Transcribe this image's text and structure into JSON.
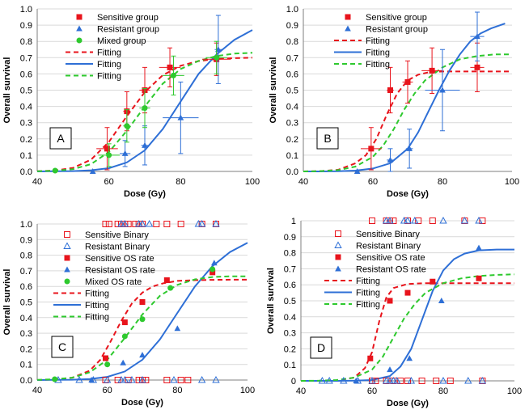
{
  "colors": {
    "sensitive": "#e8141c",
    "resistant": "#2e6fd6",
    "mixed": "#2ec92e"
  },
  "chart_data": [
    {
      "id": "A",
      "type": "scatter",
      "panel_label": "A",
      "xlabel": "Dose (Gy)",
      "ylabel": "Overall survival",
      "xlim": [
        40,
        100
      ],
      "ylim": [
        0,
        1.0
      ],
      "x_ticks": [
        "40",
        "60",
        "80",
        "100"
      ],
      "y_ticks": [
        "0.0",
        "0.1",
        "0.2",
        "0.3",
        "0.4",
        "0.5",
        "0.6",
        "0.7",
        "0.8",
        "0.9",
        "1.0"
      ],
      "series": [
        {
          "name": "Sensitive group",
          "kind": "points",
          "marker": "square",
          "color": "sensitive",
          "x": [
            59.5,
            65,
            70,
            77,
            90
          ],
          "y": [
            0.14,
            0.37,
            0.5,
            0.64,
            0.69
          ],
          "xerr": [
            3,
            1,
            1.5,
            3,
            4
          ],
          "yerr": [
            0.13,
            0.12,
            0.14,
            0.12,
            0.1
          ]
        },
        {
          "name": "Resistant group",
          "kind": "points",
          "marker": "triangle",
          "color": "resistant",
          "x": [
            55.5,
            64.5,
            70,
            80,
            90.5
          ],
          "y": [
            0.0,
            0.11,
            0.16,
            0.33,
            0.75
          ],
          "xerr": [
            0,
            1.5,
            1,
            5,
            1
          ],
          "yerr": [
            0,
            0.08,
            0.12,
            0.22,
            0.21
          ]
        },
        {
          "name": "Mixed group",
          "kind": "points",
          "marker": "circle",
          "color": "mixed",
          "x": [
            45,
            60,
            65,
            70,
            78,
            90
          ],
          "y": [
            0.005,
            0.1,
            0.28,
            0.39,
            0.59,
            0.7
          ],
          "xerr": [
            0,
            3,
            1,
            1.5,
            3,
            3
          ],
          "yerr": [
            0,
            0.07,
            0.1,
            0.12,
            0.12,
            0.1
          ]
        },
        {
          "name": "Fitting",
          "kind": "curve",
          "style": "dash",
          "color": "sensitive",
          "x": [
            40,
            45,
            50,
            55,
            60,
            65,
            70,
            75,
            80,
            85,
            90,
            95,
            100
          ],
          "y": [
            0.001,
            0.006,
            0.022,
            0.072,
            0.182,
            0.34,
            0.488,
            0.592,
            0.65,
            0.679,
            0.692,
            0.697,
            0.7
          ]
        },
        {
          "name": "Fitting",
          "kind": "curve",
          "style": "solid",
          "color": "resistant",
          "x": [
            40,
            45,
            50,
            55,
            60,
            65,
            70,
            75,
            80,
            85,
            90,
            95,
            100
          ],
          "y": [
            0.0,
            0.001,
            0.002,
            0.007,
            0.02,
            0.055,
            0.13,
            0.26,
            0.43,
            0.6,
            0.72,
            0.81,
            0.87
          ]
        },
        {
          "name": "Fitting",
          "kind": "curve",
          "style": "dash",
          "color": "mixed",
          "x": [
            40,
            45,
            50,
            55,
            60,
            65,
            70,
            75,
            80,
            85,
            90,
            95,
            100
          ],
          "y": [
            0.001,
            0.004,
            0.014,
            0.045,
            0.12,
            0.25,
            0.4,
            0.54,
            0.63,
            0.68,
            0.71,
            0.725,
            0.73
          ]
        }
      ]
    },
    {
      "id": "B",
      "type": "scatter",
      "panel_label": "B",
      "xlabel": "Dose (Gy)",
      "ylabel": "Overall survival",
      "xlim": [
        40,
        100
      ],
      "ylim": [
        0,
        1.0
      ],
      "x_ticks": [
        "40",
        "60",
        "80",
        "100"
      ],
      "y_ticks": [
        "0.0",
        "0.1",
        "0.2",
        "0.3",
        "0.4",
        "0.5",
        "0.6",
        "0.7",
        "0.8",
        "0.9",
        "1.0"
      ],
      "series": [
        {
          "name": "Sensitive group",
          "kind": "points",
          "marker": "square",
          "color": "sensitive",
          "x": [
            59.5,
            65,
            70,
            77,
            90
          ],
          "y": [
            0.14,
            0.5,
            0.55,
            0.62,
            0.64
          ],
          "xerr": [
            3,
            1,
            1.5,
            3,
            2
          ],
          "yerr": [
            0.13,
            0.14,
            0.13,
            0.14,
            0.15
          ]
        },
        {
          "name": "Resistant group",
          "kind": "points",
          "marker": "triangle",
          "color": "resistant",
          "x": [
            55.5,
            65,
            70.5,
            80,
            90
          ],
          "y": [
            0.0,
            0.07,
            0.14,
            0.5,
            0.83
          ],
          "xerr": [
            0,
            1,
            1,
            5,
            2
          ],
          "yerr": [
            0,
            0.07,
            0.12,
            0.25,
            0.15
          ]
        },
        {
          "name": "Fitting",
          "kind": "curve",
          "style": "dash",
          "color": "sensitive",
          "x": [
            40,
            45,
            50,
            55,
            58,
            61,
            64,
            67,
            70,
            73,
            76,
            80,
            85,
            90,
            95,
            100
          ],
          "y": [
            0.0,
            0.002,
            0.01,
            0.05,
            0.1,
            0.2,
            0.35,
            0.48,
            0.56,
            0.595,
            0.61,
            0.615,
            0.615,
            0.615,
            0.615,
            0.615
          ]
        },
        {
          "name": "Fitting",
          "kind": "curve",
          "style": "solid",
          "color": "resistant",
          "x": [
            40,
            45,
            50,
            55,
            60,
            65,
            70,
            73,
            76,
            79,
            82,
            85,
            88,
            91,
            94,
            98
          ],
          "y": [
            0.0,
            0.0,
            0.001,
            0.005,
            0.018,
            0.05,
            0.14,
            0.24,
            0.37,
            0.5,
            0.62,
            0.72,
            0.8,
            0.85,
            0.88,
            0.91
          ]
        },
        {
          "name": "Fitting",
          "kind": "curve",
          "style": "dash",
          "color": "mixed",
          "x": [
            40,
            45,
            50,
            55,
            60,
            63,
            66,
            69,
            72,
            75,
            80,
            85,
            90,
            95,
            100
          ],
          "y": [
            0.0,
            0.002,
            0.008,
            0.03,
            0.09,
            0.16,
            0.26,
            0.38,
            0.48,
            0.56,
            0.64,
            0.69,
            0.71,
            0.72,
            0.72
          ]
        }
      ]
    },
    {
      "id": "C",
      "type": "scatter",
      "panel_label": "C",
      "xlabel": "Dose (Gy)",
      "ylabel": "Overall survival",
      "xlim": [
        40,
        100
      ],
      "ylim": [
        0,
        1.0
      ],
      "x_ticks": [
        "40",
        "60",
        "80",
        "100"
      ],
      "y_ticks": [
        "0.0",
        "0.1",
        "0.2",
        "0.3",
        "0.4",
        "0.5",
        "0.6",
        "0.7",
        "0.8",
        "0.9",
        "1.0"
      ],
      "series": [
        {
          "name": "Sensitive Binary",
          "kind": "points",
          "marker": "open-square",
          "color": "sensitive",
          "x": [
            59.5,
            60.5,
            63,
            64,
            65,
            66,
            68,
            69,
            70,
            74,
            77,
            81,
            87,
            91,
            59.5,
            63,
            66,
            69,
            70,
            71,
            77,
            81,
            83
          ],
          "y": [
            1,
            1,
            1,
            1,
            1,
            1,
            1,
            1,
            1,
            1,
            1,
            1,
            1,
            1,
            0,
            0,
            0,
            0,
            0,
            0,
            0,
            0,
            0
          ]
        },
        {
          "name": "Resistant Binary",
          "kind": "points",
          "marker": "open-triangle",
          "color": "resistant",
          "x": [
            64,
            65,
            69,
            70,
            72,
            86,
            87,
            91,
            46,
            52,
            56,
            60,
            64,
            65,
            67,
            70,
            79,
            87,
            91
          ],
          "y": [
            1,
            1,
            1,
            1,
            1,
            1,
            1,
            1,
            0,
            0,
            0,
            0,
            0,
            0,
            0,
            0,
            0,
            0,
            0
          ]
        },
        {
          "name": "Sensitive OS rate",
          "kind": "points",
          "marker": "square",
          "color": "sensitive",
          "x": [
            59.5,
            65,
            70,
            77,
            90
          ],
          "y": [
            0.14,
            0.37,
            0.5,
            0.64,
            0.69
          ]
        },
        {
          "name": "Resistant OS rate",
          "kind": "points",
          "marker": "triangle",
          "color": "resistant",
          "x": [
            55.5,
            64.5,
            70,
            80,
            90.5
          ],
          "y": [
            0.0,
            0.11,
            0.16,
            0.33,
            0.75
          ]
        },
        {
          "name": "Mixed OS rate",
          "kind": "points",
          "marker": "circle",
          "color": "mixed",
          "x": [
            45,
            60,
            65,
            70,
            78,
            90
          ],
          "y": [
            0.005,
            0.1,
            0.28,
            0.39,
            0.59,
            0.71
          ]
        },
        {
          "name": "Fitting",
          "kind": "curve",
          "style": "dash",
          "color": "sensitive",
          "x": [
            40,
            45,
            50,
            55,
            58,
            61,
            64,
            67,
            70,
            73,
            76,
            80,
            85,
            90,
            95,
            100
          ],
          "y": [
            0.0,
            0.003,
            0.015,
            0.06,
            0.13,
            0.25,
            0.38,
            0.49,
            0.56,
            0.6,
            0.62,
            0.635,
            0.64,
            0.642,
            0.643,
            0.643
          ]
        },
        {
          "name": "Fitting",
          "kind": "curve",
          "style": "solid",
          "color": "resistant",
          "x": [
            40,
            45,
            50,
            55,
            60,
            65,
            70,
            75,
            80,
            85,
            90,
            95,
            100
          ],
          "y": [
            0.0,
            0.001,
            0.002,
            0.006,
            0.02,
            0.055,
            0.13,
            0.26,
            0.43,
            0.6,
            0.73,
            0.82,
            0.88
          ]
        },
        {
          "name": "Fitting",
          "kind": "curve",
          "style": "dash",
          "color": "mixed",
          "x": [
            40,
            45,
            50,
            55,
            60,
            65,
            70,
            75,
            80,
            85,
            90,
            95,
            100
          ],
          "y": [
            0.001,
            0.005,
            0.015,
            0.05,
            0.13,
            0.27,
            0.42,
            0.54,
            0.61,
            0.645,
            0.66,
            0.665,
            0.665
          ]
        }
      ]
    },
    {
      "id": "D",
      "type": "scatter",
      "panel_label": "D",
      "xlabel": "Dose (Gy)",
      "ylabel": "Overall survival",
      "xlim": [
        40,
        100
      ],
      "ylim": [
        0,
        1
      ],
      "x_ticks": [
        "40",
        "60",
        "80",
        "100"
      ],
      "y_ticks": [
        "0",
        "0.1",
        "0.2",
        "0.3",
        "0.4",
        "0.5",
        "0.6",
        "0.7",
        "0.8",
        "0.9",
        "1"
      ],
      "series": [
        {
          "name": "Sensitive Binary",
          "kind": "points",
          "marker": "open-square",
          "color": "sensitive",
          "x": [
            60,
            64,
            65,
            66,
            70,
            73,
            77,
            86,
            91,
            60,
            61,
            64,
            66,
            68,
            70,
            74,
            78,
            82,
            91
          ],
          "y": [
            1,
            1,
            1,
            1,
            1,
            1,
            1,
            1,
            1,
            0,
            0,
            0,
            0,
            0,
            0,
            0,
            0,
            0,
            0
          ]
        },
        {
          "name": "Resistant Binary",
          "kind": "points",
          "marker": "open-triangle",
          "color": "resistant",
          "x": [
            64,
            65,
            69,
            70,
            72,
            80,
            86,
            90,
            46,
            48,
            52,
            56,
            60,
            64,
            65,
            66,
            67,
            71,
            80,
            87,
            91
          ],
          "y": [
            1,
            1,
            1,
            1,
            1,
            1,
            1,
            1,
            0,
            0,
            0,
            0,
            0,
            0,
            0,
            0,
            0,
            0,
            0,
            0,
            0
          ]
        },
        {
          "name": "Sensitive OS rate",
          "kind": "points",
          "marker": "square",
          "color": "sensitive",
          "x": [
            59.5,
            65,
            70,
            77,
            90
          ],
          "y": [
            0.14,
            0.5,
            0.55,
            0.62,
            0.64
          ]
        },
        {
          "name": "Resistant OS rate",
          "kind": "points",
          "marker": "triangle",
          "color": "resistant",
          "x": [
            55.5,
            65,
            70.5,
            79.5,
            90
          ],
          "y": [
            0.0,
            0.07,
            0.14,
            0.5,
            0.83
          ]
        },
        {
          "name": "Fitting",
          "kind": "curve",
          "style": "dash",
          "color": "sensitive",
          "x": [
            40,
            45,
            50,
            55,
            58,
            60,
            62,
            64,
            66,
            70,
            75,
            80,
            90,
            100
          ],
          "y": [
            0.0,
            0.0,
            0.002,
            0.02,
            0.08,
            0.18,
            0.37,
            0.52,
            0.58,
            0.605,
            0.61,
            0.61,
            0.61,
            0.61
          ]
        },
        {
          "name": "Fitting",
          "kind": "curve",
          "style": "solid",
          "color": "resistant",
          "x": [
            40,
            50,
            55,
            60,
            65,
            68,
            71,
            74,
            77,
            80,
            83,
            86,
            90,
            95,
            100
          ],
          "y": [
            0.0,
            0.0,
            0.001,
            0.005,
            0.03,
            0.09,
            0.2,
            0.38,
            0.56,
            0.69,
            0.76,
            0.795,
            0.815,
            0.82,
            0.82
          ]
        },
        {
          "name": "Fitting",
          "kind": "curve",
          "style": "dash",
          "color": "mixed",
          "x": [
            40,
            45,
            50,
            55,
            60,
            63,
            66,
            69,
            72,
            75,
            80,
            85,
            90,
            95,
            100
          ],
          "y": [
            0.0,
            0.001,
            0.005,
            0.02,
            0.07,
            0.15,
            0.27,
            0.39,
            0.48,
            0.55,
            0.61,
            0.64,
            0.655,
            0.662,
            0.665
          ]
        }
      ]
    }
  ]
}
